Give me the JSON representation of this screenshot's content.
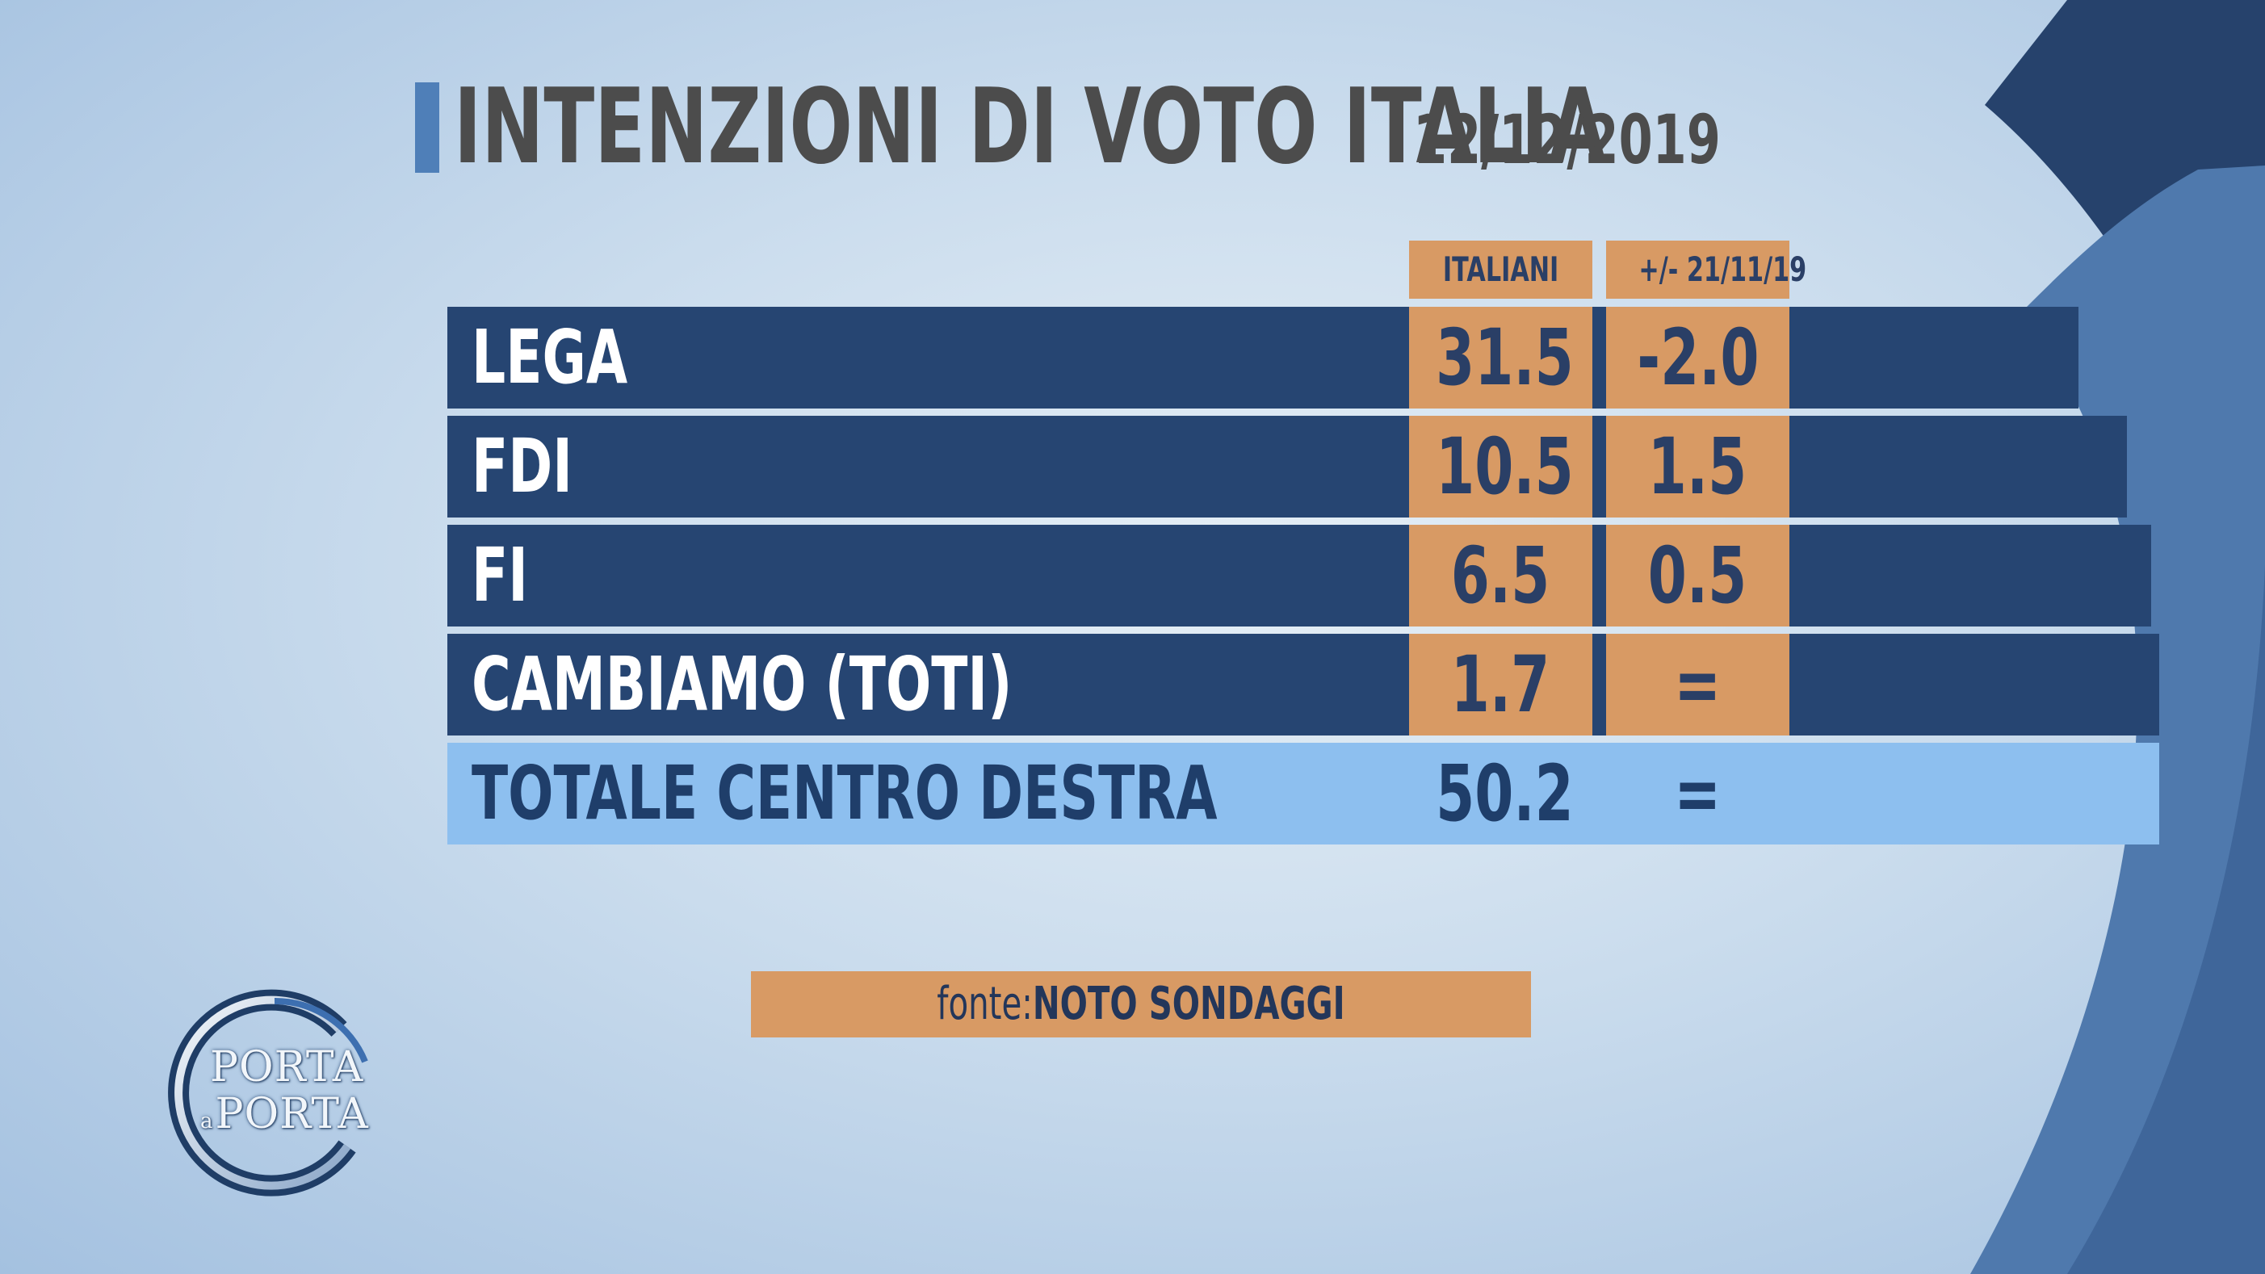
{
  "title": "INTENZIONI DI VOTO ITALIA",
  "date": "12/12/2019",
  "colors": {
    "row_bg": "#264572",
    "cell_bg": "#d89a64",
    "total_bg": "#8dbfef",
    "title_accent": "#4f7fb8",
    "title_text": "#4c4c4c"
  },
  "chart_data": {
    "type": "table",
    "columns": [
      "ITALIANI",
      "+/- 21/11/19"
    ],
    "rows": [
      {
        "party": "LEGA",
        "italiani": "31.5",
        "change": "-2.0"
      },
      {
        "party": "FDI",
        "italiani": "10.5",
        "change": "1.5"
      },
      {
        "party": "FI",
        "italiani": "6.5",
        "change": "0.5"
      },
      {
        "party": "CAMBIAMO (TOTI)",
        "italiani": "1.7",
        "change": "="
      }
    ],
    "total": {
      "label": "TOTALE CENTRO DESTRA",
      "italiani": "50.2",
      "change": "="
    }
  },
  "source": {
    "prefix": "fonte:",
    "name": "NOTO SONDAGGI"
  },
  "logo": {
    "line1": "PORTA",
    "small": "a",
    "line2": "PORTA"
  }
}
